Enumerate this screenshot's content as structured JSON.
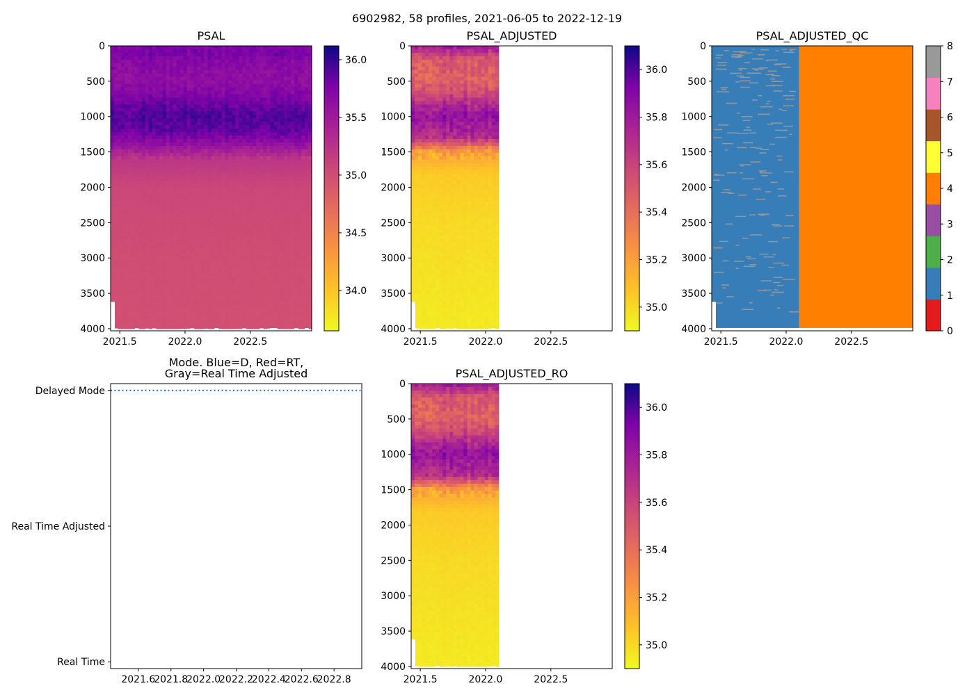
{
  "figure": {
    "suptitle": "6902982, 58 profiles, 2021-06-05 to 2022-12-19"
  },
  "chart_data": [
    {
      "id": "psal",
      "type": "heatmap",
      "title": "PSAL",
      "x_range": [
        2021.43,
        2022.97
      ],
      "x_ticks": [
        2021.5,
        2022.0,
        2022.5
      ],
      "x_tick_labels": [
        "2021.5",
        "2022.0",
        "2022.5"
      ],
      "y_range": [
        0,
        4030
      ],
      "y_ticks": [
        0,
        500,
        1000,
        1500,
        2000,
        2500,
        3000,
        3500,
        4000
      ],
      "y_tick_labels": [
        "0",
        "500",
        "1000",
        "1500",
        "2000",
        "2500",
        "3000",
        "3500",
        "4000"
      ],
      "y_inverted": true,
      "data_x_end": 2022.97,
      "colormap": "plasma_r",
      "colorbar": {
        "range": [
          33.65,
          36.12
        ],
        "ticks": [
          34.0,
          34.5,
          35.0,
          35.5,
          36.0
        ],
        "tick_labels": [
          "34.0",
          "34.5",
          "35.0",
          "35.5",
          "36.0"
        ]
      },
      "profile": [
        {
          "depth": 0,
          "value": 35.72
        },
        {
          "depth": 100,
          "value": 35.78
        },
        {
          "depth": 250,
          "value": 35.68
        },
        {
          "depth": 500,
          "value": 35.62
        },
        {
          "depth": 750,
          "value": 35.78
        },
        {
          "depth": 1000,
          "value": 35.92
        },
        {
          "depth": 1200,
          "value": 35.86
        },
        {
          "depth": 1400,
          "value": 35.6
        },
        {
          "depth": 1600,
          "value": 35.22
        },
        {
          "depth": 2000,
          "value": 35.06
        },
        {
          "depth": 3000,
          "value": 35.0
        },
        {
          "depth": 4000,
          "value": 34.98
        }
      ]
    },
    {
      "id": "psal-adjusted",
      "type": "heatmap",
      "title": "PSAL_ADJUSTED",
      "x_range": [
        2021.43,
        2022.97
      ],
      "x_ticks": [
        2021.5,
        2022.0,
        2022.5
      ],
      "x_tick_labels": [
        "2021.5",
        "2022.0",
        "2022.5"
      ],
      "y_range": [
        0,
        4030
      ],
      "y_ticks": [
        0,
        500,
        1000,
        1500,
        2000,
        2500,
        3000,
        3500,
        4000
      ],
      "y_tick_labels": [
        "0",
        "500",
        "1000",
        "1500",
        "2000",
        "2500",
        "3000",
        "3500",
        "4000"
      ],
      "y_inverted": true,
      "data_x_end": 2022.1,
      "colormap": "plasma_r",
      "colorbar": {
        "range": [
          34.9,
          36.1
        ],
        "ticks": [
          35.0,
          35.2,
          35.4,
          35.6,
          35.8,
          36.0
        ],
        "tick_labels": [
          "35.0",
          "35.2",
          "35.4",
          "35.6",
          "35.8",
          "36.0"
        ]
      },
      "profile": [
        {
          "depth": 0,
          "value": 35.8
        },
        {
          "depth": 200,
          "value": 35.5
        },
        {
          "depth": 500,
          "value": 35.45
        },
        {
          "depth": 700,
          "value": 35.6
        },
        {
          "depth": 1000,
          "value": 35.85
        },
        {
          "depth": 1300,
          "value": 35.7
        },
        {
          "depth": 1500,
          "value": 35.2
        },
        {
          "depth": 1800,
          "value": 35.05
        },
        {
          "depth": 2500,
          "value": 35.0
        },
        {
          "depth": 4000,
          "value": 34.95
        }
      ]
    },
    {
      "id": "psal-adjusted-qc",
      "type": "heatmap",
      "title": "PSAL_ADJUSTED_QC",
      "x_range": [
        2021.43,
        2022.97
      ],
      "x_ticks": [
        2021.5,
        2022.0,
        2022.5
      ],
      "x_tick_labels": [
        "2021.5",
        "2022.0",
        "2022.5"
      ],
      "y_range": [
        0,
        4030
      ],
      "y_ticks": [
        0,
        500,
        1000,
        1500,
        2000,
        2500,
        3000,
        3500,
        4000
      ],
      "y_tick_labels": [
        "0",
        "500",
        "1000",
        "1500",
        "2000",
        "2500",
        "3000",
        "3500",
        "4000"
      ],
      "y_inverted": true,
      "qc_regions": [
        {
          "x_start": 2021.43,
          "x_end": 2022.1,
          "flag": 1
        },
        {
          "x_start": 2022.1,
          "x_end": 2022.97,
          "flag": 4
        }
      ],
      "colorbar": {
        "range": [
          0,
          8
        ],
        "ticks": [
          0,
          1,
          2,
          3,
          4,
          5,
          6,
          7,
          8
        ],
        "tick_labels": [
          "0",
          "1",
          "2",
          "3",
          "4",
          "5",
          "6",
          "7",
          "8"
        ],
        "segments": [
          "#e41a1c",
          "#377eb8",
          "#4daf4a",
          "#984ea3",
          "#ff7f00",
          "#ffff33",
          "#a65628",
          "#f781bf",
          "#999999"
        ]
      }
    },
    {
      "id": "mode",
      "type": "line",
      "title_line1": "Mode. Blue=D, Red=RT,",
      "title_line2": "Gray=Real Time Adjusted",
      "x_range": [
        2021.43,
        2022.97
      ],
      "x_ticks": [
        2021.6,
        2021.8,
        2022.0,
        2022.2,
        2022.4,
        2022.6,
        2022.8
      ],
      "x_tick_labels": [
        "2021.6",
        "2021.8",
        "2022.0",
        "2022.2",
        "2022.4",
        "2022.6",
        "2022.8"
      ],
      "y_range": [
        -0.05,
        2.05
      ],
      "y_ticks": [
        0,
        1,
        2
      ],
      "y_tick_labels": [
        "Real Time",
        "Real Time Adjusted",
        "Delayed Mode"
      ],
      "series": [
        {
          "name": "Delayed Mode",
          "color": "#1f77b4",
          "style": "dotted",
          "x": [
            2021.43,
            2022.97
          ],
          "y": [
            2,
            2
          ]
        }
      ]
    },
    {
      "id": "psal-adjusted-ro",
      "type": "heatmap",
      "title": "PSAL_ADJUSTED_RO",
      "x_range": [
        2021.43,
        2022.97
      ],
      "x_ticks": [
        2021.5,
        2022.0,
        2022.5
      ],
      "x_tick_labels": [
        "2021.5",
        "2022.0",
        "2022.5"
      ],
      "y_range": [
        0,
        4030
      ],
      "y_ticks": [
        0,
        500,
        1000,
        1500,
        2000,
        2500,
        3000,
        3500,
        4000
      ],
      "y_tick_labels": [
        "0",
        "500",
        "1000",
        "1500",
        "2000",
        "2500",
        "3000",
        "3500",
        "4000"
      ],
      "y_inverted": true,
      "data_x_end": 2022.1,
      "colormap": "plasma_r",
      "colorbar": {
        "range": [
          34.9,
          36.1
        ],
        "ticks": [
          35.0,
          35.2,
          35.4,
          35.6,
          35.8,
          36.0
        ],
        "tick_labels": [
          "35.0",
          "35.2",
          "35.4",
          "35.6",
          "35.8",
          "36.0"
        ]
      },
      "profile": [
        {
          "depth": 0,
          "value": 35.8
        },
        {
          "depth": 200,
          "value": 35.5
        },
        {
          "depth": 500,
          "value": 35.45
        },
        {
          "depth": 700,
          "value": 35.6
        },
        {
          "depth": 1000,
          "value": 35.85
        },
        {
          "depth": 1300,
          "value": 35.7
        },
        {
          "depth": 1500,
          "value": 35.2
        },
        {
          "depth": 1800,
          "value": 35.05
        },
        {
          "depth": 2500,
          "value": 35.0
        },
        {
          "depth": 4000,
          "value": 34.95
        }
      ]
    }
  ]
}
